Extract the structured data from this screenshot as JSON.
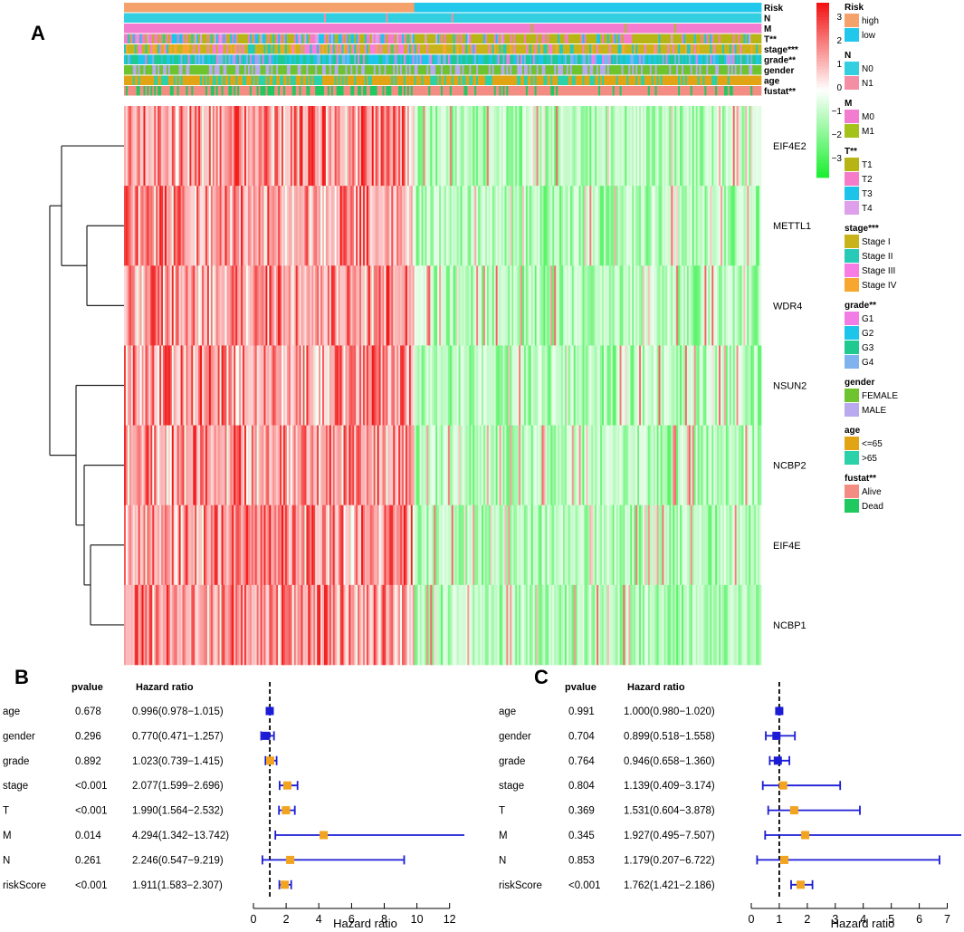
{
  "panel_labels": {
    "a": "A",
    "b": "B",
    "c": "C"
  },
  "colorbar": {
    "ticks": [
      "3",
      "2",
      "1",
      "0",
      "−1",
      "−2",
      "−3"
    ],
    "min": -3,
    "max": 3,
    "high_color": "#f21010",
    "mid_color": "#ffffff",
    "low_color": "#1aef2f"
  },
  "chart_data": [
    {
      "type": "heatmap",
      "title": "",
      "genes": [
        "EIF4E2",
        "METTL1",
        "WDR4",
        "NSUN2",
        "NCBP2",
        "EIF4E",
        "NCBP1"
      ],
      "n_samples": 360,
      "high_risk_samples": 164,
      "value_range": [
        -3,
        3
      ],
      "annotation_tracks": [
        {
          "key": "Risk",
          "label": "Risk"
        },
        {
          "key": "N",
          "label": "N"
        },
        {
          "key": "M",
          "label": "M"
        },
        {
          "key": "T",
          "label": "T**"
        },
        {
          "key": "stage",
          "label": "stage***"
        },
        {
          "key": "grade",
          "label": "grade**"
        },
        {
          "key": "gender",
          "label": "gender"
        },
        {
          "key": "age",
          "label": "age"
        },
        {
          "key": "fustat",
          "label": "fustat**"
        }
      ],
      "legend": [
        {
          "title": "Risk",
          "items": [
            {
              "label": "high",
              "color": "#f4a16b"
            },
            {
              "label": "low",
              "color": "#22c7ec"
            }
          ]
        },
        {
          "title": "N",
          "items": [
            {
              "label": "N0",
              "color": "#33cfe0"
            },
            {
              "label": "N1",
              "color": "#f48ea5"
            }
          ]
        },
        {
          "title": "M",
          "items": [
            {
              "label": "M0",
              "color": "#f27ccf"
            },
            {
              "label": "M1",
              "color": "#a4c21a"
            }
          ]
        },
        {
          "title": "T**",
          "items": [
            {
              "label": "T1",
              "color": "#b7b515"
            },
            {
              "label": "T2",
              "color": "#f67bc8"
            },
            {
              "label": "T3",
              "color": "#1ec3ea"
            },
            {
              "label": "T4",
              "color": "#dea0ea"
            }
          ]
        },
        {
          "title": "stage***",
          "items": [
            {
              "label": "Stage I",
              "color": "#c9b31a"
            },
            {
              "label": "Stage II",
              "color": "#27c9b7"
            },
            {
              "label": "Stage III",
              "color": "#f77ce3"
            },
            {
              "label": "Stage IV",
              "color": "#f7a62f"
            }
          ]
        },
        {
          "title": "grade**",
          "items": [
            {
              "label": "G1",
              "color": "#f27ce6"
            },
            {
              "label": "G2",
              "color": "#1ec5ea"
            },
            {
              "label": "G3",
              "color": "#1fc98f"
            },
            {
              "label": "G4",
              "color": "#7fb3ee"
            }
          ]
        },
        {
          "title": "gender",
          "items": [
            {
              "label": "FEMALE",
              "color": "#6dc42e"
            },
            {
              "label": "MALE",
              "color": "#b9a9ee"
            }
          ]
        },
        {
          "title": "age",
          "items": [
            {
              "label": "<=65",
              "color": "#e0a414"
            },
            {
              "label": ">65",
              "color": "#2ad1a9"
            }
          ]
        },
        {
          "title": "fustat**",
          "items": [
            {
              "label": "Alive",
              "color": "#f38c82"
            },
            {
              "label": "Dead",
              "color": "#1fc95f"
            }
          ]
        }
      ]
    },
    {
      "type": "forest",
      "title": "",
      "header": {
        "pvalue": "pvalue",
        "hr": "Hazard ratio"
      },
      "xlabel": "Hazard ratio",
      "xlim": [
        0,
        12.9
      ],
      "xticks": [
        0,
        2,
        4,
        6,
        8,
        10,
        12
      ],
      "reference_line": 1,
      "rows": [
        {
          "label": "age",
          "pvalue": "0.678",
          "hr_text": "0.996(0.978−1.015)",
          "hr": 0.996,
          "lo": 0.978,
          "hi": 1.015,
          "color": "#1c1cd6"
        },
        {
          "label": "gender",
          "pvalue": "0.296",
          "hr_text": "0.770(0.471−1.257)",
          "hr": 0.77,
          "lo": 0.471,
          "hi": 1.257,
          "color": "#1c1cd6"
        },
        {
          "label": "grade",
          "pvalue": "0.892",
          "hr_text": "1.023(0.739−1.415)",
          "hr": 1.023,
          "lo": 0.739,
          "hi": 1.415,
          "color": "#f2a31f"
        },
        {
          "label": "stage",
          "pvalue": "<0.001",
          "hr_text": "2.077(1.599−2.696)",
          "hr": 2.077,
          "lo": 1.599,
          "hi": 2.696,
          "color": "#f2a31f"
        },
        {
          "label": "T",
          "pvalue": "<0.001",
          "hr_text": "1.990(1.564−2.532)",
          "hr": 1.99,
          "lo": 1.564,
          "hi": 2.532,
          "color": "#f2a31f"
        },
        {
          "label": "M",
          "pvalue": "0.014",
          "hr_text": "4.294(1.342−13.742)",
          "hr": 4.294,
          "lo": 1.342,
          "hi": 13.742,
          "color": "#f2a31f"
        },
        {
          "label": "N",
          "pvalue": "0.261",
          "hr_text": "2.246(0.547−9.219)",
          "hr": 2.246,
          "lo": 0.547,
          "hi": 9.219,
          "color": "#f2a31f"
        },
        {
          "label": "riskScore",
          "pvalue": "<0.001",
          "hr_text": "1.911(1.583−2.307)",
          "hr": 1.911,
          "lo": 1.583,
          "hi": 2.307,
          "color": "#f2a31f"
        }
      ]
    },
    {
      "type": "forest",
      "title": "",
      "header": {
        "pvalue": "pvalue",
        "hr": "Hazard ratio"
      },
      "xlabel": "Hazard ratio",
      "xlim": [
        0,
        7.5
      ],
      "xticks": [
        0,
        1,
        2,
        3,
        4,
        5,
        6,
        7
      ],
      "reference_line": 1,
      "rows": [
        {
          "label": "age",
          "pvalue": "0.991",
          "hr_text": "1.000(0.980−1.020)",
          "hr": 1.0,
          "lo": 0.98,
          "hi": 1.02,
          "color": "#1c1cd6"
        },
        {
          "label": "gender",
          "pvalue": "0.704",
          "hr_text": "0.899(0.518−1.558)",
          "hr": 0.899,
          "lo": 0.518,
          "hi": 1.558,
          "color": "#1c1cd6"
        },
        {
          "label": "grade",
          "pvalue": "0.764",
          "hr_text": "0.946(0.658−1.360)",
          "hr": 0.946,
          "lo": 0.658,
          "hi": 1.36,
          "color": "#1c1cd6"
        },
        {
          "label": "stage",
          "pvalue": "0.804",
          "hr_text": "1.139(0.409−3.174)",
          "hr": 1.139,
          "lo": 0.409,
          "hi": 3.174,
          "color": "#f2a31f"
        },
        {
          "label": "T",
          "pvalue": "0.369",
          "hr_text": "1.531(0.604−3.878)",
          "hr": 1.531,
          "lo": 0.604,
          "hi": 3.878,
          "color": "#f2a31f"
        },
        {
          "label": "M",
          "pvalue": "0.345",
          "hr_text": "1.927(0.495−7.507)",
          "hr": 1.927,
          "lo": 0.495,
          "hi": 7.507,
          "color": "#f2a31f"
        },
        {
          "label": "N",
          "pvalue": "0.853",
          "hr_text": "1.179(0.207−6.722)",
          "hr": 1.179,
          "lo": 0.207,
          "hi": 6.722,
          "color": "#f2a31f"
        },
        {
          "label": "riskScore",
          "pvalue": "<0.001",
          "hr_text": "1.762(1.421−2.186)",
          "hr": 1.762,
          "lo": 1.421,
          "hi": 2.186,
          "color": "#f2a31f"
        }
      ]
    }
  ]
}
